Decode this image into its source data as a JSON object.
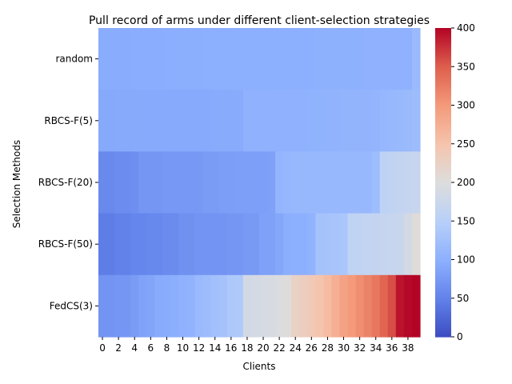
{
  "chart_data": {
    "type": "heatmap",
    "title": "Pull record of arms under different client-selection strategies",
    "xlabel": "Clients",
    "ylabel": "Selection Methods",
    "x_tick_labels": [
      "0",
      "2",
      "4",
      "6",
      "8",
      "10",
      "12",
      "14",
      "16",
      "18",
      "20",
      "22",
      "24",
      "26",
      "28",
      "30",
      "32",
      "34",
      "36",
      "38"
    ],
    "rows": [
      "random",
      "RBCS-F(5)",
      "RBCS-F(20)",
      "RBCS-F(50)",
      "FedCS(3)"
    ],
    "columns": 40,
    "colormap": "coolwarm",
    "vmin": 0,
    "vmax": 400,
    "colorbar_ticks": [
      0,
      50,
      100,
      150,
      200,
      250,
      300,
      350,
      400
    ],
    "values": [
      [
        96,
        96,
        96,
        96,
        97,
        97,
        97,
        97,
        98,
        98,
        98,
        98,
        98,
        99,
        99,
        99,
        99,
        99,
        100,
        100,
        100,
        100,
        100,
        100,
        100,
        100,
        100,
        101,
        101,
        101,
        101,
        101,
        101,
        102,
        102,
        102,
        102,
        102,
        102,
        115
      ],
      [
        92,
        92,
        93,
        93,
        93,
        93,
        94,
        94,
        94,
        94,
        94,
        94,
        94,
        94,
        95,
        95,
        95,
        95,
        102,
        102,
        102,
        102,
        103,
        103,
        103,
        103,
        104,
        104,
        105,
        105,
        106,
        106,
        107,
        107,
        108,
        110,
        112,
        114,
        116,
        118
      ],
      [
        58,
        58,
        62,
        62,
        64,
        72,
        72,
        72,
        74,
        74,
        74,
        74,
        74,
        78,
        78,
        80,
        80,
        82,
        82,
        82,
        82,
        84,
        108,
        110,
        112,
        112,
        112,
        112,
        112,
        112,
        112,
        112,
        112,
        112,
        120,
        158,
        162,
        165,
        168,
        170
      ],
      [
        45,
        45,
        50,
        50,
        54,
        54,
        56,
        56,
        60,
        60,
        66,
        66,
        70,
        70,
        70,
        70,
        72,
        72,
        76,
        76,
        84,
        84,
        90,
        98,
        100,
        100,
        104,
        128,
        130,
        132,
        134,
        160,
        162,
        164,
        166,
        168,
        170,
        172,
        185,
        205
      ],
      [
        70,
        70,
        72,
        72,
        78,
        85,
        88,
        95,
        96,
        98,
        102,
        105,
        115,
        118,
        125,
        128,
        138,
        140,
        185,
        188,
        190,
        192,
        196,
        202,
        225,
        230,
        240,
        250,
        260,
        275,
        290,
        300,
        310,
        320,
        330,
        345,
        360,
        392,
        398,
        400
      ]
    ]
  }
}
